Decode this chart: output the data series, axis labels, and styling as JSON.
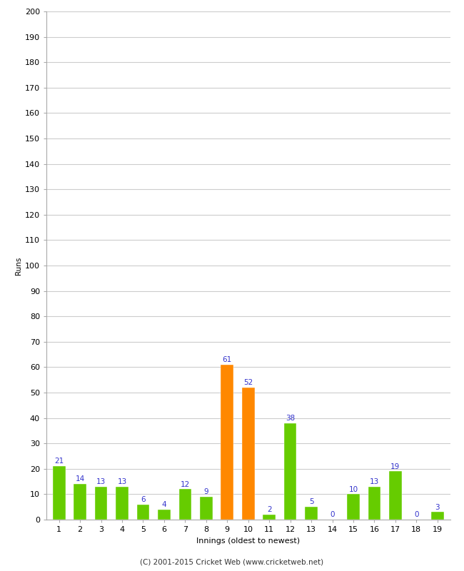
{
  "innings": [
    1,
    2,
    3,
    4,
    5,
    6,
    7,
    8,
    9,
    10,
    11,
    12,
    13,
    14,
    15,
    16,
    17,
    18,
    19
  ],
  "values": [
    21,
    14,
    13,
    13,
    6,
    4,
    12,
    9,
    61,
    52,
    2,
    38,
    5,
    0,
    10,
    13,
    19,
    0,
    3
  ],
  "colors": [
    "#66cc00",
    "#66cc00",
    "#66cc00",
    "#66cc00",
    "#66cc00",
    "#66cc00",
    "#66cc00",
    "#66cc00",
    "#ff8800",
    "#ff8800",
    "#66cc00",
    "#66cc00",
    "#66cc00",
    "#66cc00",
    "#66cc00",
    "#66cc00",
    "#66cc00",
    "#66cc00",
    "#66cc00"
  ],
  "xlabel": "Innings (oldest to newest)",
  "ylabel": "Runs",
  "ylim": [
    0,
    200
  ],
  "yticks": [
    0,
    10,
    20,
    30,
    40,
    50,
    60,
    70,
    80,
    90,
    100,
    110,
    120,
    130,
    140,
    150,
    160,
    170,
    180,
    190,
    200
  ],
  "label_color": "#3333cc",
  "label_fontsize": 7.5,
  "axis_fontsize": 8,
  "ylabel_fontsize": 7.5,
  "footer": "(C) 2001-2015 Cricket Web (www.cricketweb.net)",
  "background_color": "#ffffff",
  "grid_color": "#cccccc"
}
